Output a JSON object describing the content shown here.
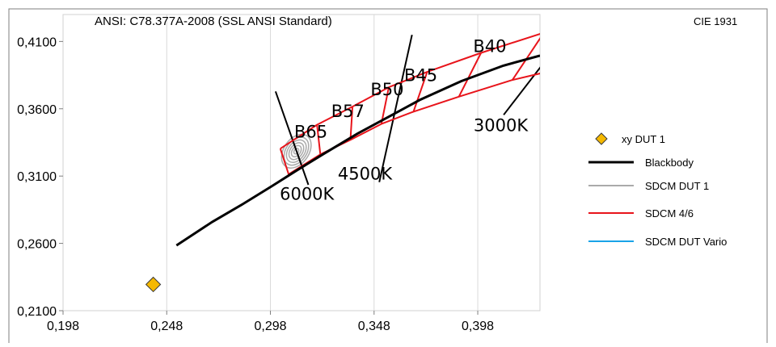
{
  "chart_data": {
    "type": "scatter",
    "title": "ANSI: C78.377A-2008 (SSL ANSI Standard)",
    "subtitle": "CIE 1931",
    "xlabel": "",
    "ylabel": "",
    "xlim": [
      0.198,
      0.428
    ],
    "ylim": [
      0.21,
      0.43
    ],
    "x_ticks": [
      0.198,
      0.248,
      0.298,
      0.348,
      0.398
    ],
    "x_tick_labels": [
      "0,198",
      "0,248",
      "0,298",
      "0,348",
      "0,398"
    ],
    "y_ticks": [
      0.21,
      0.26,
      0.31,
      0.36,
      0.41
    ],
    "y_tick_labels": [
      "0,2100",
      "0,2600",
      "0,3100",
      "0,3600",
      "0,4100"
    ],
    "grid": "vertical",
    "legend_position": "right",
    "series": [
      {
        "name": "xy DUT 1",
        "kind": "marker",
        "color": "#F5B800",
        "points": [
          [
            0.2415,
            0.2295
          ]
        ]
      },
      {
        "name": "Blackbody",
        "kind": "line",
        "color": "#000000",
        "points": [
          [
            0.2527,
            0.2585
          ],
          [
            0.27,
            0.276
          ],
          [
            0.285,
            0.2895
          ],
          [
            0.2988,
            0.3026
          ],
          [
            0.31,
            0.3135
          ],
          [
            0.3236,
            0.3264
          ],
          [
            0.34,
            0.3415
          ],
          [
            0.3559,
            0.3547
          ],
          [
            0.37,
            0.3665
          ],
          [
            0.39,
            0.3805
          ],
          [
            0.4103,
            0.392
          ],
          [
            0.428,
            0.3995
          ]
        ]
      },
      {
        "name": "SDCM DUT 1",
        "kind": "ellipses",
        "color": "#AAAAAA",
        "center": [
          0.3105,
          0.3285
        ],
        "semi_axes": [
          [
            0.0015,
            0.0007
          ],
          [
            0.003,
            0.0014
          ],
          [
            0.0045,
            0.0021
          ],
          [
            0.006,
            0.0028
          ],
          [
            0.0075,
            0.0035
          ],
          [
            0.009,
            0.0042
          ]
        ],
        "angle_deg": -55
      },
      {
        "name": "SDCM 4/6",
        "kind": "line",
        "color": "#E8141B",
        "segments": [
          [
            [
              0.3028,
              0.3304
            ],
            [
              0.3205,
              0.3481
            ],
            [
              0.3376,
              0.3616
            ],
            [
              0.3551,
              0.376
            ],
            [
              0.3736,
              0.3874
            ],
            [
              0.3996,
              0.4015
            ],
            [
              0.4299,
              0.4165
            ]
          ],
          [
            [
              0.3028,
              0.3304
            ],
            [
              0.3068,
              0.3113
            ],
            [
              0.3221,
              0.3261
            ],
            [
              0.3366,
              0.3369
            ],
            [
              0.3515,
              0.3487
            ],
            [
              0.367,
              0.3578
            ],
            [
              0.3889,
              0.369
            ],
            [
              0.4147,
              0.3814
            ],
            [
              0.4299,
              0.3869
            ]
          ],
          [
            [
              0.3205,
              0.3481
            ],
            [
              0.3221,
              0.3261
            ]
          ],
          [
            [
              0.3376,
              0.3616
            ],
            [
              0.3366,
              0.3369
            ]
          ],
          [
            [
              0.3551,
              0.376
            ],
            [
              0.3515,
              0.3487
            ]
          ],
          [
            [
              0.3736,
              0.3874
            ],
            [
              0.367,
              0.3578
            ]
          ],
          [
            [
              0.3996,
              0.4015
            ],
            [
              0.3889,
              0.369
            ]
          ],
          [
            [
              0.4299,
              0.4165
            ],
            [
              0.4147,
              0.3814
            ]
          ]
        ]
      },
      {
        "name": "SDCM DUT Vario",
        "kind": "line",
        "color": "#1AA3E8",
        "points": []
      }
    ],
    "reference_lines": [
      {
        "label": "6000K",
        "color": "#000000",
        "points": [
          [
            0.3005,
            0.3729
          ],
          [
            0.3163,
            0.3035
          ]
        ]
      },
      {
        "label": "4500K",
        "color": "#000000",
        "points": [
          [
            0.3663,
            0.4149
          ],
          [
            0.3505,
            0.3055
          ]
        ]
      },
      {
        "label": "3000K",
        "color": "#000000",
        "points": [
          [
            0.429,
            0.3925
          ],
          [
            0.4105,
            0.3555
          ]
        ]
      }
    ],
    "annotations": [
      {
        "text": "B65",
        "x": 0.3095,
        "y": 0.3385
      },
      {
        "text": "B57",
        "x": 0.3273,
        "y": 0.354
      },
      {
        "text": "B50",
        "x": 0.3463,
        "y": 0.3702
      },
      {
        "text": "B45",
        "x": 0.3625,
        "y": 0.3805
      },
      {
        "text": "B40",
        "x": 0.3958,
        "y": 0.402
      },
      {
        "text": "6000K",
        "x": 0.3025,
        "y": 0.2925
      },
      {
        "text": "4500K",
        "x": 0.3305,
        "y": 0.3075
      },
      {
        "text": "3000K",
        "x": 0.396,
        "y": 0.3435
      }
    ],
    "legend": [
      "xy DUT 1",
      "Blackbody",
      "SDCM DUT 1",
      "SDCM 4/6",
      "SDCM DUT Vario"
    ]
  }
}
